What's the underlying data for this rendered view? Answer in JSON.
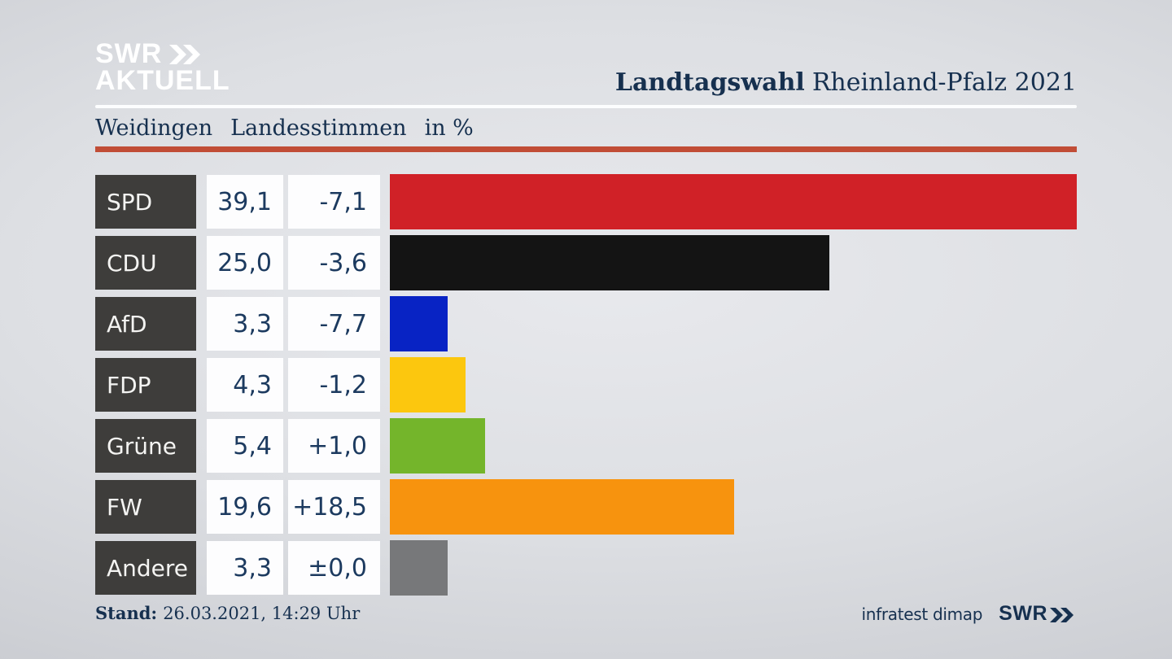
{
  "header": {
    "logo": {
      "line1": "SWR",
      "line2": "AKTUELL",
      "chevrons_icon": "double-chevron-right"
    },
    "title": {
      "bold": "Landtagswahl",
      "rest": "Rheinland-Pfalz 2021"
    },
    "subtitle": {
      "region": "Weidingen",
      "vote_type": "Landesstimmen",
      "unit": "in %"
    }
  },
  "chart_data": {
    "type": "bar",
    "orientation": "horizontal",
    "title": "Weidingen — Landesstimmen in %",
    "unit": "%",
    "xlim": [
      0,
      39.1
    ],
    "grid": false,
    "categories": [
      "SPD",
      "CDU",
      "AfD",
      "FDP",
      "Grüne",
      "FW",
      "Andere"
    ],
    "values": [
      39.1,
      25.0,
      3.3,
      4.3,
      5.4,
      19.6,
      3.3
    ],
    "value_labels": [
      "39,1",
      "25,0",
      "3,3",
      "4,3",
      "5,4",
      "19,6",
      "3,3"
    ],
    "change_values": [
      -7.1,
      -3.6,
      -7.7,
      -1.2,
      1.0,
      18.5,
      0.0
    ],
    "change_labels": [
      "-7,1",
      "-3,6",
      "-7,7",
      "-1,2",
      "+1,0",
      "+18,5",
      "±0,0"
    ],
    "bar_colors": [
      "#d02127",
      "#141414",
      "#0823c4",
      "#fcc70e",
      "#74b52b",
      "#f7930e",
      "#77787a"
    ]
  },
  "footer": {
    "stand_label": "Stand:",
    "stand_value": "26.03.2021, 14:29 Uhr",
    "source": "infratest dimap",
    "brand": "SWR"
  },
  "colors": {
    "accent_rule": "#c14d36",
    "text_navy": "#16304f",
    "label_box_bg": "#3e3d3b",
    "value_box_bg": "#fdfdfe",
    "logo_white": "#ffffff"
  }
}
